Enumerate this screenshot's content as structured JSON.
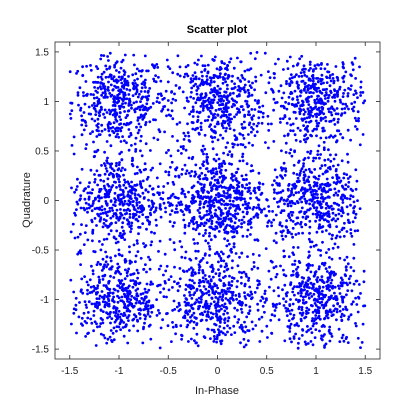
{
  "chart_data": {
    "type": "scatter",
    "title": "Scatter plot",
    "xlabel": "In-Phase",
    "ylabel": "Quadrature",
    "xlim": [
      -1.65,
      1.65
    ],
    "ylim": [
      -1.6,
      1.6
    ],
    "x_ticks": [
      "-1.5",
      "-1",
      "-0.5",
      "0",
      "0.5",
      "1",
      "1.5"
    ],
    "y_ticks": [
      "1.5",
      "1",
      "0.5",
      "0",
      "-0.5",
      "-1",
      "-1.5"
    ],
    "grid": false,
    "legend": "none",
    "marker_color": "#0000ff",
    "marker": "dot",
    "constellation_centers": [
      [
        -1,
        1
      ],
      [
        0,
        1
      ],
      [
        1,
        1
      ],
      [
        -1,
        0
      ],
      [
        0,
        0
      ],
      [
        1,
        0
      ],
      [
        -1,
        -1
      ],
      [
        0,
        -1
      ],
      [
        1,
        -1
      ]
    ],
    "x_range_of_points": [
      -1.5,
      1.5
    ],
    "y_range_of_points": [
      -1.5,
      1.5
    ]
  }
}
